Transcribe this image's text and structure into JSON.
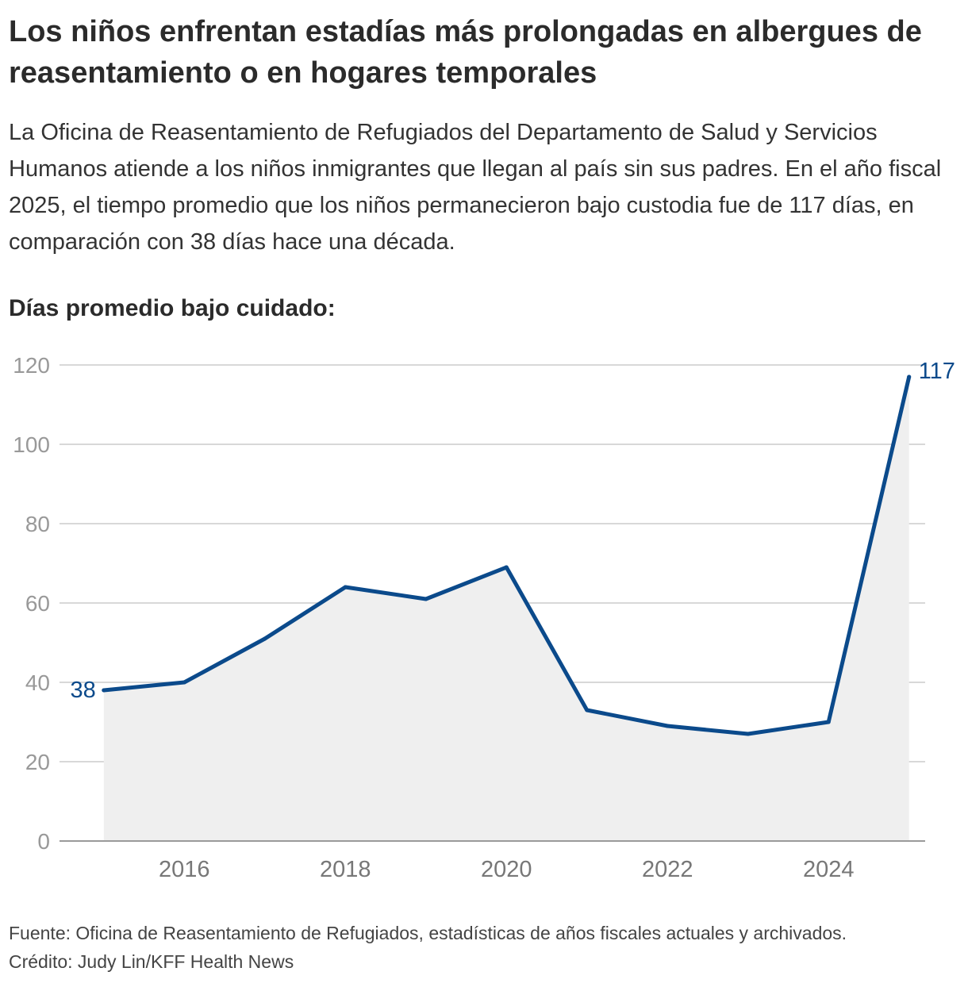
{
  "header": {
    "title": "Los niños enfrentan estadías más prolongadas en albergues de reasentamiento o en hogares temporales",
    "subtitle": "La Oficina de Reasentamiento de Refugiados del Departamento de Salud y Servicios Humanos atiende a los niños inmigrantes que llegan al país sin sus padres. En el año fiscal 2025, el tiempo promedio que los niños permanecieron bajo custodia fue de 117 días, en comparación con 38 días hace una década."
  },
  "footer": {
    "source": "Fuente: Oficina de Reasentamiento de Refugiados, estadísticas de años fiscales actuales y archivados.",
    "credit": "Crédito: Judy Lin/KFF Health News"
  },
  "chart_data": {
    "type": "area",
    "ylabel": "Días promedio bajo cuidado:",
    "x": [
      2015,
      2016,
      2017,
      2018,
      2019,
      2020,
      2021,
      2022,
      2023,
      2024,
      2025
    ],
    "series": [
      {
        "values": [
          38,
          40,
          51,
          64,
          61,
          69,
          33,
          29,
          27,
          30,
          117
        ]
      }
    ],
    "xlim": [
      2014.45,
      2025.2
    ],
    "ylim": [
      0,
      120
    ],
    "yticks": [
      0,
      20,
      40,
      60,
      80,
      100,
      120
    ],
    "xticks": [
      2016,
      2018,
      2020,
      2022,
      2024
    ],
    "annotations": [
      {
        "x": 2015,
        "label": "38"
      },
      {
        "x": 2025,
        "label": "117"
      }
    ],
    "grid": true,
    "colors": {
      "line": "#0b4a8b",
      "area": "#efefef",
      "grid": "#cccccc",
      "tick": "#999999",
      "xtick": "#777777",
      "baseline": "#9a9a9a"
    }
  }
}
